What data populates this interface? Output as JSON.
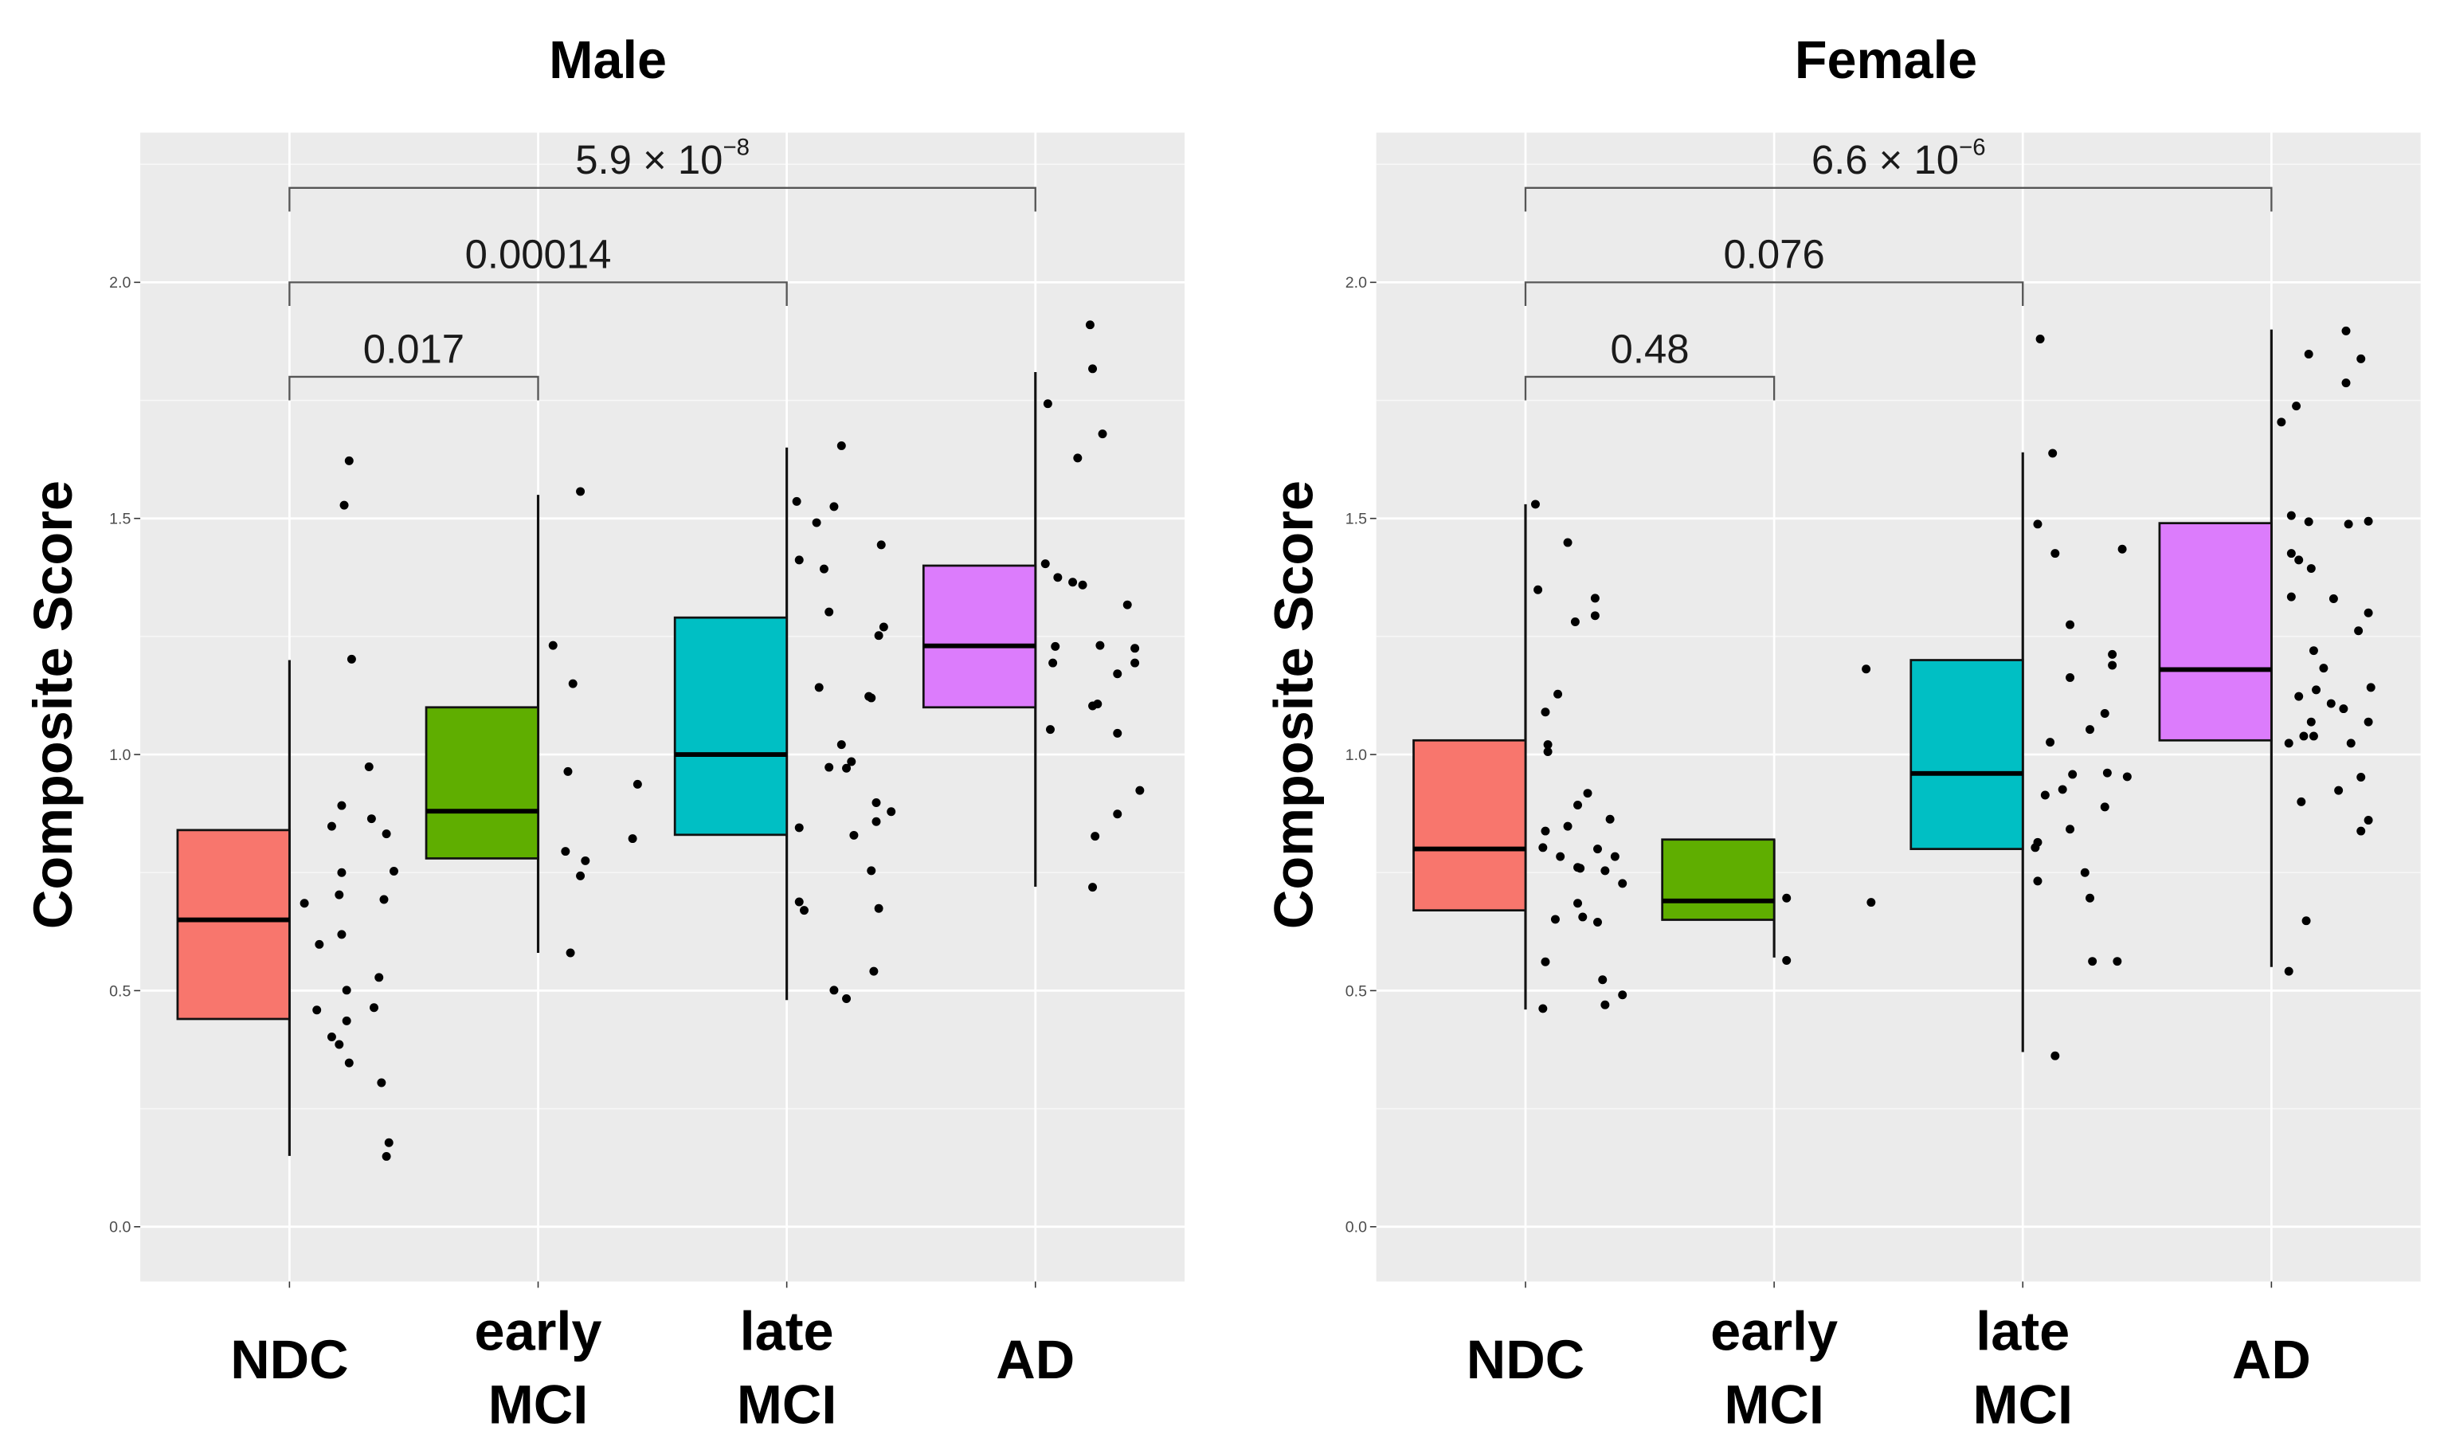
{
  "chart_data": [
    {
      "type": "box",
      "title": "Male",
      "xlabel": "",
      "ylabel": "Composite Score",
      "ylim": [
        -0.116,
        2.317
      ],
      "yticks": [
        "0.0",
        "0.5",
        "1.0",
        "1.5",
        "2.0"
      ],
      "ytick_values": [
        0,
        0.5,
        1.0,
        1.5,
        2.0
      ],
      "grid": true,
      "categories": [
        [
          "NDC"
        ],
        [
          "early",
          "MCI"
        ],
        [
          "late",
          "MCI"
        ],
        [
          "AD"
        ]
      ],
      "colors": [
        "#f8766d",
        "#5fae00",
        "#00bfc4",
        "#dc7cfc"
      ],
      "boxes": [
        {
          "q1": 0.44,
          "median": 0.65,
          "q3": 0.84,
          "whisker_low": 0.15,
          "whisker_high": 1.2
        },
        {
          "q1": 0.78,
          "median": 0.88,
          "q3": 1.1,
          "whisker_low": 0.58,
          "whisker_high": 1.55
        },
        {
          "q1": 0.83,
          "median": 1.0,
          "q3": 1.29,
          "whisker_low": 0.48,
          "whisker_high": 1.65
        },
        {
          "q1": 1.1,
          "median": 1.23,
          "q3": 1.4,
          "whisker_low": 0.72,
          "whisker_high": 1.81
        }
      ],
      "points": [
        [
          [
            0.06,
            0.685
          ],
          [
            0.12,
            0.598
          ],
          [
            0.11,
            0.459
          ],
          [
            0.17,
            0.402
          ],
          [
            0.2,
            0.386
          ],
          [
            0.24,
            0.347
          ],
          [
            0.23,
            0.436
          ],
          [
            0.21,
            0.619
          ],
          [
            0.23,
            0.501
          ],
          [
            0.2,
            0.703
          ],
          [
            0.21,
            0.75
          ],
          [
            0.21,
            0.892
          ],
          [
            0.17,
            0.848
          ],
          [
            0.24,
            1.622
          ],
          [
            0.22,
            1.528
          ],
          [
            0.25,
            1.202
          ],
          [
            0.32,
            0.974
          ],
          [
            0.33,
            0.864
          ],
          [
            0.38,
            0.693
          ],
          [
            0.39,
            0.832
          ],
          [
            0.42,
            0.753
          ],
          [
            0.36,
            0.528
          ],
          [
            0.34,
            0.464
          ],
          [
            0.37,
            0.305
          ],
          [
            0.4,
            0.178
          ],
          [
            0.39,
            0.149
          ]
        ],
        [
          [
            0.06,
            1.231
          ],
          [
            0.14,
            1.15
          ],
          [
            0.12,
            0.964
          ],
          [
            0.17,
            1.557
          ],
          [
            0.11,
            0.795
          ],
          [
            0.19,
            0.775
          ],
          [
            0.17,
            0.743
          ],
          [
            0.13,
            0.58
          ],
          [
            0.4,
            0.937
          ],
          [
            0.38,
            0.822
          ]
        ],
        [
          [
            0.04,
            1.536
          ],
          [
            0.12,
            1.491
          ],
          [
            0.19,
            1.525
          ],
          [
            0.22,
            1.654
          ],
          [
            0.05,
            1.412
          ],
          [
            0.15,
            1.393
          ],
          [
            0.17,
            1.302
          ],
          [
            0.38,
            1.444
          ],
          [
            0.39,
            1.27
          ],
          [
            0.37,
            1.252
          ],
          [
            0.13,
            1.142
          ],
          [
            0.33,
            1.123
          ],
          [
            0.34,
            1.12
          ],
          [
            0.22,
            1.021
          ],
          [
            0.26,
            0.985
          ],
          [
            0.24,
            0.971
          ],
          [
            0.17,
            0.973
          ],
          [
            0.36,
            0.898
          ],
          [
            0.42,
            0.879
          ],
          [
            0.36,
            0.858
          ],
          [
            0.27,
            0.829
          ],
          [
            0.05,
            0.845
          ],
          [
            0.34,
            0.754
          ],
          [
            0.05,
            0.688
          ],
          [
            0.07,
            0.67
          ],
          [
            0.37,
            0.674
          ],
          [
            0.35,
            0.541
          ],
          [
            0.19,
            0.501
          ],
          [
            0.24,
            0.483
          ]
        ],
        [
          [
            0.22,
            1.91
          ],
          [
            0.23,
            1.817
          ],
          [
            0.05,
            1.743
          ],
          [
            0.27,
            1.679
          ],
          [
            0.17,
            1.628
          ],
          [
            0.04,
            1.404
          ],
          [
            0.09,
            1.375
          ],
          [
            0.15,
            1.365
          ],
          [
            0.19,
            1.359
          ],
          [
            0.37,
            1.317
          ],
          [
            0.08,
            1.229
          ],
          [
            0.07,
            1.194
          ],
          [
            0.26,
            1.231
          ],
          [
            0.4,
            1.225
          ],
          [
            0.4,
            1.194
          ],
          [
            0.33,
            1.171
          ],
          [
            0.23,
            1.103
          ],
          [
            0.25,
            1.107
          ],
          [
            0.06,
            1.053
          ],
          [
            0.33,
            1.045
          ],
          [
            0.42,
            0.924
          ],
          [
            0.33,
            0.874
          ],
          [
            0.24,
            0.827
          ],
          [
            0.23,
            0.719
          ]
        ]
      ],
      "comparisons": [
        {
          "from": 0,
          "to": 1,
          "y": 1.8,
          "label": "0.017",
          "exp": ""
        },
        {
          "from": 0,
          "to": 2,
          "y": 2.0,
          "label": "0.00014",
          "exp": ""
        },
        {
          "from": 0,
          "to": 3,
          "y": 2.2,
          "label": "5.9 × 10",
          "exp": "−8"
        }
      ]
    },
    {
      "type": "box",
      "title": "Female",
      "xlabel": "",
      "ylabel": "Composite Score",
      "ylim": [
        -0.116,
        2.317
      ],
      "yticks": [
        "0.0",
        "0.5",
        "1.0",
        "1.5",
        "2.0"
      ],
      "ytick_values": [
        0,
        0.5,
        1.0,
        1.5,
        2.0
      ],
      "grid": true,
      "categories": [
        [
          "NDC"
        ],
        [
          "early",
          "MCI"
        ],
        [
          "late",
          "MCI"
        ],
        [
          "AD"
        ]
      ],
      "colors": [
        "#f8766d",
        "#5fae00",
        "#00bfc4",
        "#dc7cfc"
      ],
      "boxes": [
        {
          "q1": 0.67,
          "median": 0.8,
          "q3": 1.03,
          "whisker_low": 0.46,
          "whisker_high": 1.53
        },
        {
          "q1": 0.65,
          "median": 0.69,
          "q3": 0.82,
          "whisker_low": 0.57,
          "whisker_high": 0.82
        },
        {
          "q1": 0.8,
          "median": 0.96,
          "q3": 1.2,
          "whisker_low": 0.37,
          "whisker_high": 1.64
        },
        {
          "q1": 1.03,
          "median": 1.18,
          "q3": 1.49,
          "whisker_low": 0.55,
          "whisker_high": 1.9
        }
      ],
      "points": [
        [
          [
            0.04,
            1.53
          ],
          [
            0.05,
            1.349
          ],
          [
            0.17,
            1.449
          ],
          [
            0.2,
            1.281
          ],
          [
            0.28,
            1.331
          ],
          [
            0.28,
            1.294
          ],
          [
            0.13,
            1.128
          ],
          [
            0.08,
            1.09
          ],
          [
            0.09,
            1.021
          ],
          [
            0.09,
            1.006
          ],
          [
            0.25,
            0.918
          ],
          [
            0.21,
            0.893
          ],
          [
            0.17,
            0.848
          ],
          [
            0.08,
            0.838
          ],
          [
            0.07,
            0.803
          ],
          [
            0.14,
            0.784
          ],
          [
            0.34,
            0.863
          ],
          [
            0.21,
            0.761
          ],
          [
            0.22,
            0.759
          ],
          [
            0.29,
            0.8
          ],
          [
            0.32,
            0.754
          ],
          [
            0.36,
            0.784
          ],
          [
            0.39,
            0.727
          ],
          [
            0.21,
            0.685
          ],
          [
            0.23,
            0.656
          ],
          [
            0.29,
            0.645
          ],
          [
            0.12,
            0.651
          ],
          [
            0.08,
            0.561
          ],
          [
            0.31,
            0.523
          ],
          [
            0.32,
            0.47
          ],
          [
            0.39,
            0.491
          ],
          [
            0.07,
            0.462
          ]
        ],
        [
          [
            0.05,
            0.696
          ],
          [
            0.05,
            0.564
          ],
          [
            0.37,
            1.181
          ],
          [
            0.39,
            0.687
          ]
        ],
        [
          [
            0.07,
            1.88
          ],
          [
            0.12,
            1.638
          ],
          [
            0.06,
            1.488
          ],
          [
            0.13,
            1.426
          ],
          [
            0.4,
            1.435
          ],
          [
            0.19,
            1.275
          ],
          [
            0.36,
            1.212
          ],
          [
            0.36,
            1.189
          ],
          [
            0.19,
            1.163
          ],
          [
            0.33,
            1.087
          ],
          [
            0.27,
            1.053
          ],
          [
            0.11,
            1.026
          ],
          [
            0.2,
            0.958
          ],
          [
            0.34,
            0.961
          ],
          [
            0.42,
            0.953
          ],
          [
            0.16,
            0.926
          ],
          [
            0.09,
            0.914
          ],
          [
            0.33,
            0.889
          ],
          [
            0.19,
            0.842
          ],
          [
            0.06,
            0.814
          ],
          [
            0.05,
            0.803
          ],
          [
            0.25,
            0.75
          ],
          [
            0.06,
            0.732
          ],
          [
            0.27,
            0.696
          ],
          [
            0.28,
            0.562
          ],
          [
            0.38,
            0.562
          ],
          [
            0.13,
            0.362
          ]
        ],
        [
          [
            0.3,
            1.897
          ],
          [
            0.15,
            1.848
          ],
          [
            0.36,
            1.838
          ],
          [
            0.3,
            1.787
          ],
          [
            0.1,
            1.738
          ],
          [
            0.04,
            1.704
          ],
          [
            0.08,
            1.506
          ],
          [
            0.15,
            1.493
          ],
          [
            0.31,
            1.488
          ],
          [
            0.39,
            1.494
          ],
          [
            0.08,
            1.426
          ],
          [
            0.11,
            1.412
          ],
          [
            0.16,
            1.394
          ],
          [
            0.08,
            1.334
          ],
          [
            0.25,
            1.33
          ],
          [
            0.39,
            1.3
          ],
          [
            0.35,
            1.262
          ],
          [
            0.17,
            1.22
          ],
          [
            0.21,
            1.183
          ],
          [
            0.4,
            1.142
          ],
          [
            0.18,
            1.137
          ],
          [
            0.11,
            1.123
          ],
          [
            0.24,
            1.108
          ],
          [
            0.29,
            1.097
          ],
          [
            0.16,
            1.069
          ],
          [
            0.39,
            1.069
          ],
          [
            0.13,
            1.039
          ],
          [
            0.17,
            1.039
          ],
          [
            0.07,
            1.024
          ],
          [
            0.32,
            1.024
          ],
          [
            0.27,
            0.924
          ],
          [
            0.36,
            0.952
          ],
          [
            0.12,
            0.9
          ],
          [
            0.39,
            0.861
          ],
          [
            0.36,
            0.838
          ],
          [
            0.14,
            0.648
          ],
          [
            0.07,
            0.541
          ]
        ]
      ],
      "comparisons": [
        {
          "from": 0,
          "to": 1,
          "y": 1.8,
          "label": "0.48",
          "exp": ""
        },
        {
          "from": 0,
          "to": 2,
          "y": 2.0,
          "label": "0.076",
          "exp": ""
        },
        {
          "from": 0,
          "to": 3,
          "y": 2.2,
          "label": "6.6 × 10",
          "exp": "−6"
        }
      ]
    }
  ]
}
